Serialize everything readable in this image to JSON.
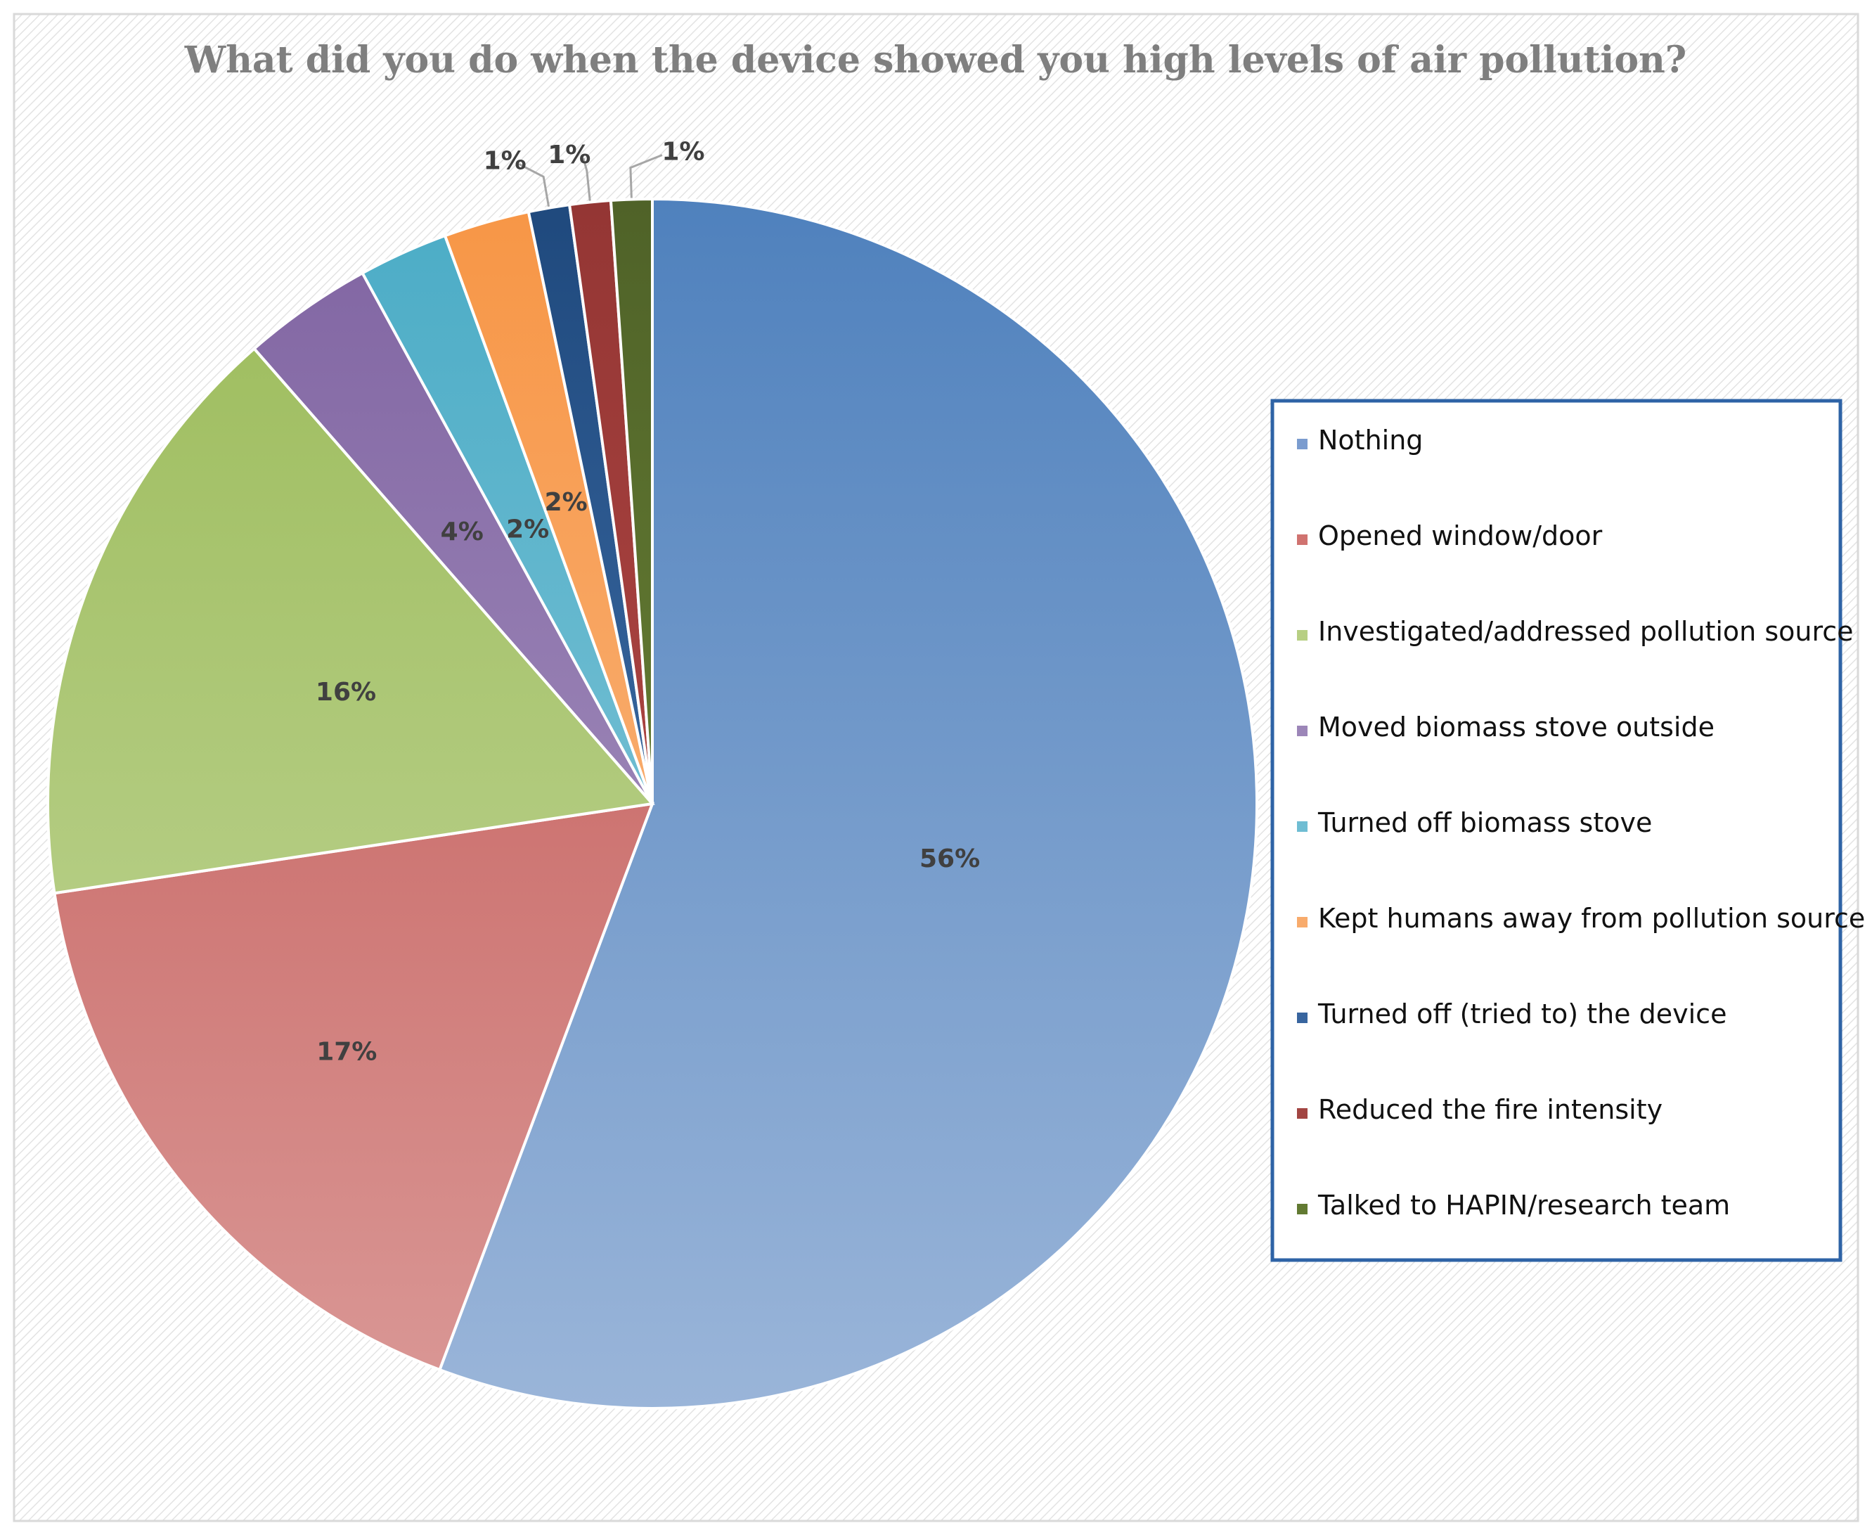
{
  "chart_data": {
    "type": "pie",
    "title": "What did you do when the device showed you high levels of air pollution?",
    "start_angle_deg": 0,
    "direction": "clockwise",
    "slices": [
      {
        "name": "Nothing",
        "value": 56,
        "label": "56%",
        "color_top": "#4f81bd",
        "color_bottom": "#9ab5d9"
      },
      {
        "name": "Opened window/door",
        "value": 17,
        "label": "17%",
        "color_top": "#c0504d",
        "color_bottom": "#da9896"
      },
      {
        "name": "Investigated/addressed pollution source",
        "value": 16,
        "label": "16%",
        "color_top": "#9bbb59",
        "color_bottom": "#c6d9a0"
      },
      {
        "name": "Moved biomass stove outside",
        "value": 3.5,
        "label": "4%",
        "color_top": "#8064a2",
        "color_bottom": "#b1a0c7"
      },
      {
        "name": "Turned off biomass stove",
        "value": 2.4,
        "label": "2%",
        "color_top": "#4bacc6",
        "color_bottom": "#93cddd"
      },
      {
        "name": "Kept humans away from pollution source",
        "value": 2.3,
        "label": "2%",
        "color_top": "#f79646",
        "color_bottom": "#fabf8f"
      },
      {
        "name": "Turned off (tried to) the device",
        "value": 1.1,
        "label": "1%",
        "color_top": "#1f497d",
        "color_bottom": "#4f81bd"
      },
      {
        "name": "Reduced the fire intensity",
        "value": 1.1,
        "label": "1%",
        "color_top": "#943634",
        "color_bottom": "#c0504d"
      },
      {
        "name": "Talked to HAPIN/research team",
        "value": 1.1,
        "label": "1%",
        "color_top": "#4f6228",
        "color_bottom": "#77933c"
      }
    ],
    "legend_position": "right",
    "legend_colors": [
      "#7b9ccf",
      "#d07370",
      "#b7cf83",
      "#9c86b8",
      "#6fbdd3",
      "#f8ab6c",
      "#38659f",
      "#a24542",
      "#627a32"
    ]
  }
}
